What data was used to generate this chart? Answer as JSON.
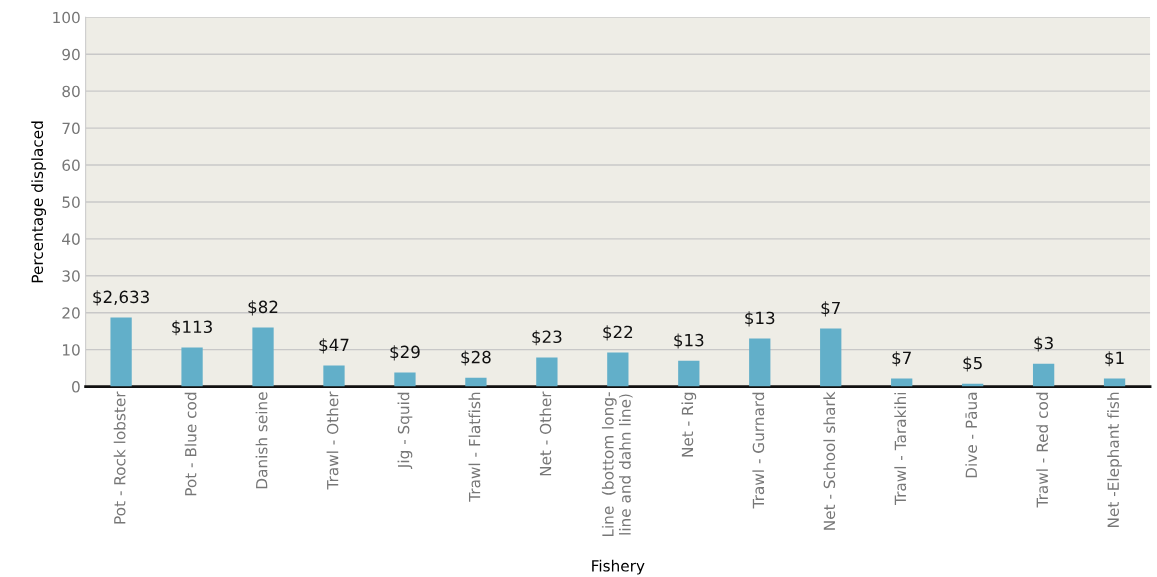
{
  "chart_data": {
    "type": "bar",
    "xlabel": "Fishery",
    "ylabel": "Percentage displaced",
    "categories": [
      "Pot - Rock lobster",
      "Pot - Blue cod",
      "Danish seine",
      "Trawl - Other",
      "Jig - Squid",
      "Trawl - Flatfish",
      "Net - Other",
      "Line  (bottom long-\nline and dahn line)",
      "Net - Rig",
      "Trawl - Gurnard",
      "Net - School shark",
      "Trawl - Tarakihi",
      "Dive - Pāua",
      "Trawl - Red cod",
      "Net -Elephant fish"
    ],
    "values": [
      18.7,
      10.6,
      16,
      5.7,
      3.8,
      2.4,
      7.9,
      9.2,
      7.0,
      13,
      15.7,
      2.2,
      0.8,
      6.2,
      2.2
    ],
    "annotations": [
      {
        "text": "$2,633",
        "x": "Pot - Rock lobster",
        "y": 18.7
      },
      {
        "text": "$113",
        "x": "Pot - Blue cod",
        "y": 10.6
      },
      {
        "text": "$82",
        "x": "Danish seine",
        "y": 16
      },
      {
        "text": "$47",
        "x": "Trawl - Other",
        "y": 5.7
      },
      {
        "text": "$29",
        "x": "Jig - Squid",
        "y": 3.8
      },
      {
        "text": "$28",
        "x": "Trawl - Flatfish",
        "y": 2.4
      },
      {
        "text": "$23",
        "x": "Net - Other",
        "y": 7.9
      },
      {
        "text": "$22",
        "x": "Line  (bottom long-\nline and dahn line)",
        "y": 9.2
      },
      {
        "text": "$13",
        "x": "Net - Rig",
        "y": 7.0
      },
      {
        "text": "$13",
        "x": "Trawl - Gurnard",
        "y": 13
      },
      {
        "text": "$7",
        "x": "Net - School shark",
        "y": 15.7
      },
      {
        "text": "$7",
        "x": "Trawl - Tarakihi",
        "y": 2.2
      },
      {
        "text": "$5",
        "x": "Dive - Pāua",
        "y": 0.8
      },
      {
        "text": "$3",
        "x": "Trawl - Red cod",
        "y": 6.2
      },
      {
        "text": "$1",
        "x": "Net -Elephant fish",
        "y": 2.2
      }
    ],
    "color": "#62afc9",
    "ylim": [
      0,
      100
    ],
    "yticks": [
      0,
      10,
      20,
      30,
      40,
      50,
      60,
      70,
      80,
      90,
      100
    ],
    "grid": "y"
  }
}
